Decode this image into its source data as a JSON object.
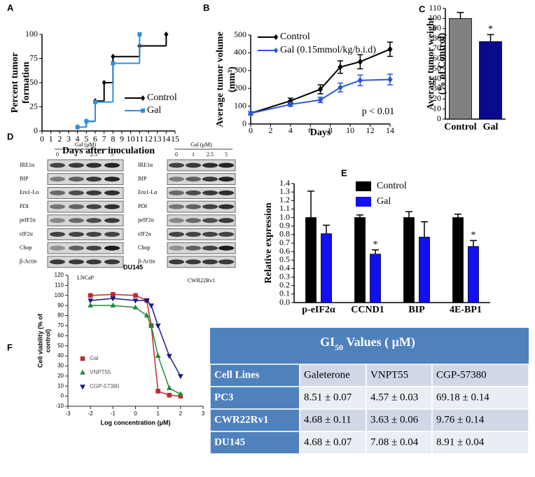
{
  "chart_data": [
    {
      "type": "step",
      "panel": "A",
      "xlabel": "Days after inoculation",
      "ylabel": [
        "Percent tumor",
        "formation"
      ],
      "xlim": [
        0,
        15
      ],
      "xticks": [
        0,
        1,
        2,
        3,
        4,
        5,
        6,
        7,
        8,
        9,
        10,
        11,
        12,
        13,
        14,
        15
      ],
      "ylim": [
        0,
        100
      ],
      "yticks": [
        0,
        25,
        50,
        75,
        100
      ],
      "series": [
        {
          "name": "Control",
          "color": "#000000",
          "marker": "diamond",
          "x": [
            4,
            5,
            6,
            7,
            8,
            11,
            14
          ],
          "values": [
            4,
            10,
            31,
            50,
            77,
            88,
            100
          ]
        },
        {
          "name": "Gal",
          "color": "#2f8fdc",
          "marker": "square",
          "x": [
            4,
            5,
            6,
            8,
            11
          ],
          "values": [
            4,
            10,
            30,
            70,
            100
          ]
        }
      ]
    },
    {
      "type": "line",
      "panel": "B",
      "xlabel": "Days",
      "ylabel": [
        "Average tumor volume",
        "(mm³)"
      ],
      "annotation": "p < 0.01",
      "xlim": [
        0,
        14
      ],
      "xticks": [
        0,
        2,
        4,
        6,
        8,
        10,
        12,
        14
      ],
      "ylim": [
        0,
        500
      ],
      "yticks": [
        0,
        100,
        200,
        300,
        400,
        500
      ],
      "series": [
        {
          "name": "Control",
          "color": "#000000",
          "marker": "diamond",
          "x": [
            0,
            4,
            7,
            9,
            11,
            14
          ],
          "values": [
            60,
            130,
            195,
            320,
            350,
            420
          ],
          "errors": [
            10,
            15,
            25,
            35,
            40,
            40
          ]
        },
        {
          "name": "Gal (0.15mmol/kg/b.i.d)",
          "color": "#2b55d6",
          "marker": "diamond",
          "x": [
            0,
            4,
            7,
            9,
            11,
            14
          ],
          "values": [
            60,
            110,
            135,
            205,
            245,
            250
          ],
          "errors": [
            10,
            10,
            15,
            25,
            30,
            30
          ]
        }
      ]
    },
    {
      "type": "bar",
      "panel": "C",
      "ylabel": [
        "Average tumor weight",
        "(% of Control)"
      ],
      "categories": [
        "Control",
        "Gal"
      ],
      "values": [
        100,
        77
      ],
      "errors": [
        6,
        7
      ],
      "colors": [
        "#808080",
        "#0a0a8c"
      ],
      "significance": [
        null,
        "*"
      ],
      "ylim": [
        0,
        110
      ],
      "yticks": [
        0,
        10,
        20,
        30,
        40,
        50,
        60,
        70,
        80,
        90,
        100,
        110
      ]
    },
    {
      "type": "bar",
      "panel": "E",
      "ylabel": [
        "Relative expression"
      ],
      "categories": [
        "p-eIF2α",
        "CCND1",
        "BIP",
        "4E-BP1"
      ],
      "ylim": [
        0,
        1.4
      ],
      "yticks": [
        {
          "value": 0,
          "label": "0.0"
        },
        0.1,
        0.2,
        0.3,
        0.4,
        0.5,
        0.6,
        0.7,
        0.8,
        0.9,
        {
          "value": 1,
          "label": "1.0"
        },
        1.1,
        1.2,
        1.3,
        1.4
      ],
      "series": [
        {
          "name": "Control",
          "color": "#000000",
          "values": [
            1,
            1,
            1,
            1
          ],
          "errors": [
            0.31,
            0.03,
            0.07,
            0.04
          ]
        },
        {
          "name": "Gal",
          "color": "#1010f0",
          "values": [
            0.81,
            0.57,
            0.77,
            0.66
          ],
          "errors": [
            0.1,
            0.05,
            0.18,
            0.07
          ],
          "significance": [
            null,
            "*",
            null,
            "*"
          ]
        }
      ]
    },
    {
      "type": "line",
      "panel": "F",
      "title": "DU145",
      "xlabel": "Log concentration (μM)",
      "ylabel": [
        "Cell viability (% of",
        "control)"
      ],
      "xlim": [
        -3,
        3
      ],
      "xticks": [
        -3,
        -2,
        -1,
        0,
        1,
        2,
        3
      ],
      "ylim": [
        -10,
        120
      ],
      "yticks": [
        -10,
        0,
        10,
        20,
        30,
        40,
        50,
        60,
        70,
        80,
        90,
        100,
        110,
        120
      ],
      "series": [
        {
          "name": "Gal",
          "color": "#c0282d",
          "marker": "square",
          "x": [
            -2,
            -1,
            0,
            0.5,
            0.7,
            1,
            1.5,
            2
          ],
          "values": [
            100,
            101,
            100,
            95,
            70,
            5,
            1,
            0
          ]
        },
        {
          "name": "VNPT55",
          "color": "#1e8b3a",
          "marker": "triangle",
          "x": [
            -2,
            -1,
            0,
            0.5,
            0.7,
            1,
            1.5,
            2
          ],
          "values": [
            90,
            90,
            88,
            80,
            70,
            40,
            8,
            2
          ]
        },
        {
          "name": "CGP-57380",
          "color": "#1a1a8c",
          "marker": "triangle-down",
          "x": [
            -2,
            -1,
            0,
            0.5,
            0.7,
            1,
            1.5,
            2
          ],
          "values": [
            95,
            97,
            95,
            95,
            90,
            70,
            40,
            20
          ]
        }
      ]
    }
  ],
  "blots": {
    "panel": "D",
    "header": "Gal (μM)",
    "doses": [
      "0",
      "1",
      "2.5",
      "5"
    ],
    "panels": [
      {
        "caption": "LNCaP",
        "rows": [
          "IRE1α",
          "BIP",
          "Ero1-Lα",
          "PDI",
          "peIF2α",
          "eIF2α",
          "Chop",
          "β-Actin"
        ]
      },
      {
        "caption": "CWR22Rv1",
        "rows": [
          "IRE1α",
          "BIP",
          "Ero1-Lα",
          "PDI",
          "peIF2α",
          "eIF2α",
          "Chop",
          "β-Actin"
        ]
      }
    ]
  },
  "table": {
    "title": "GI",
    "title_sub": "50",
    "title_rest": " Values ( μM)",
    "header": [
      "Cell Lines",
      "Galeterone",
      "VNPT55",
      "CGP-57380"
    ],
    "rows": [
      [
        "PC3",
        "8.51 ± 0.07",
        "4.57 ± 0.03",
        "69.18  ± 0.14"
      ],
      [
        "CWR22Rv1",
        "4.68 ± 0.11",
        "3.63 ± 0.06",
        "9.76  ± 0.14"
      ],
      [
        "DU145",
        "4.68 ± 0.07",
        "7.08 ± 0.04",
        "8.91 ± 0.04"
      ]
    ]
  }
}
